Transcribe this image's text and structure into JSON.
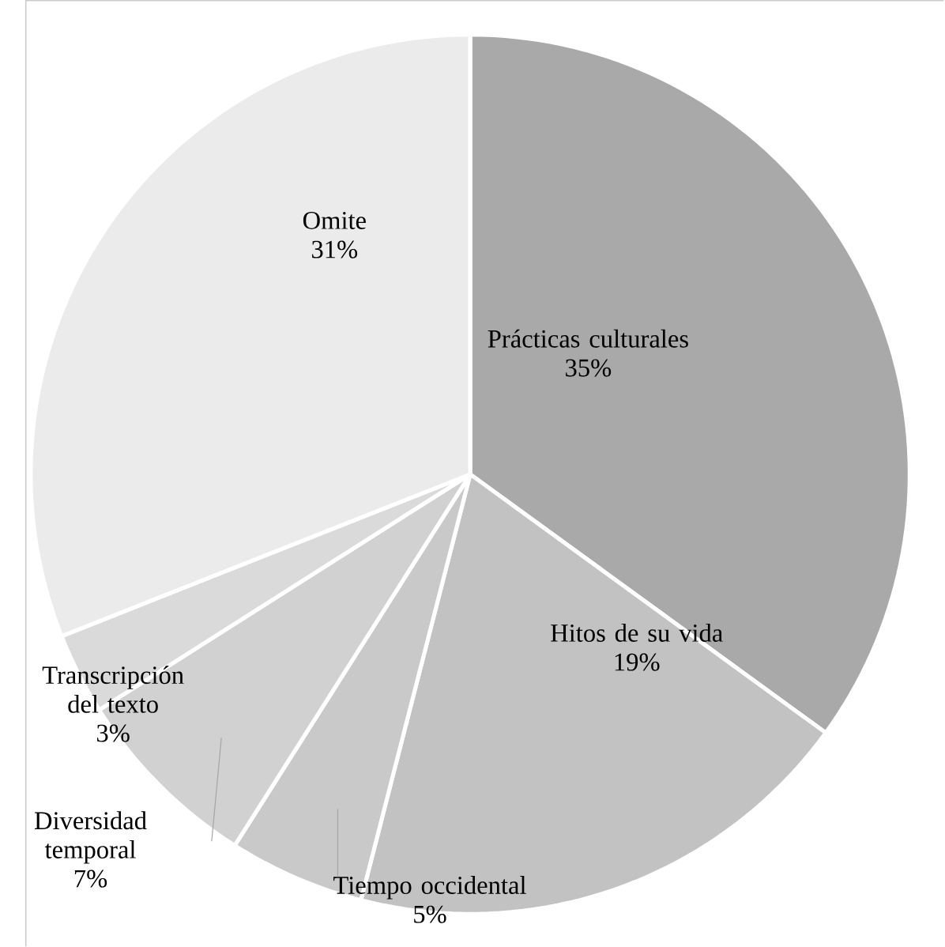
{
  "chart_data": {
    "type": "pie",
    "categories": [
      "Prácticas culturales",
      "Hitos de su vida",
      "Tiempo occidental",
      "Diversidad temporal",
      "Transcripción del texto",
      "Omite"
    ],
    "values": [
      35,
      19,
      5,
      7,
      3,
      31
    ],
    "value_labels": [
      "35%",
      "19%",
      "5%",
      "7%",
      "3%",
      "31%"
    ],
    "colors": [
      "#a9a9a9",
      "#c2c2c2",
      "#c9c9c9",
      "#d1d1d1",
      "#dadada",
      "#ebebeb"
    ]
  }
}
